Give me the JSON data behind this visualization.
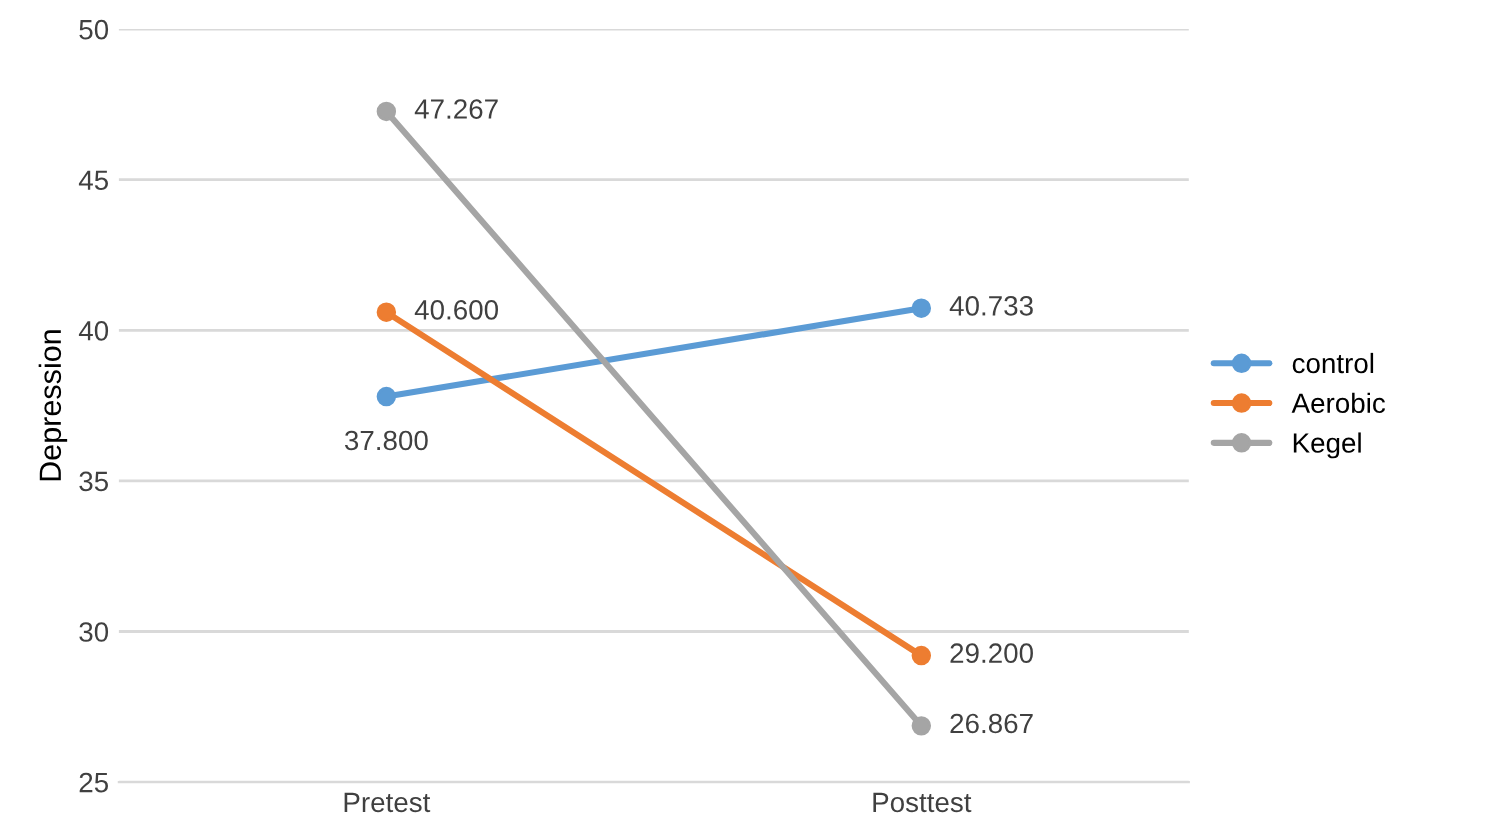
{
  "chart_data": {
    "type": "line",
    "ylabel": "Depression",
    "categories": [
      "Pretest",
      "Posttest"
    ],
    "series": [
      {
        "name": "control",
        "color": "#5b9bd5",
        "values": [
          37.8,
          40.733
        ],
        "value_labels": [
          "37.800",
          "40.733"
        ]
      },
      {
        "name": "Aerobic",
        "color": "#ed7d31",
        "values": [
          40.6,
          29.2
        ],
        "value_labels": [
          "40.600",
          "29.200"
        ]
      },
      {
        "name": "Kegel",
        "color": "#a5a5a5",
        "values": [
          47.267,
          26.867
        ],
        "value_labels": [
          "47.267",
          "26.867"
        ]
      }
    ],
    "ylim": [
      25,
      50
    ],
    "yticks": [
      25,
      30,
      35,
      40,
      45,
      50
    ],
    "grid": "y",
    "legend": "right",
    "marker": "circle",
    "line_style": "solid"
  }
}
